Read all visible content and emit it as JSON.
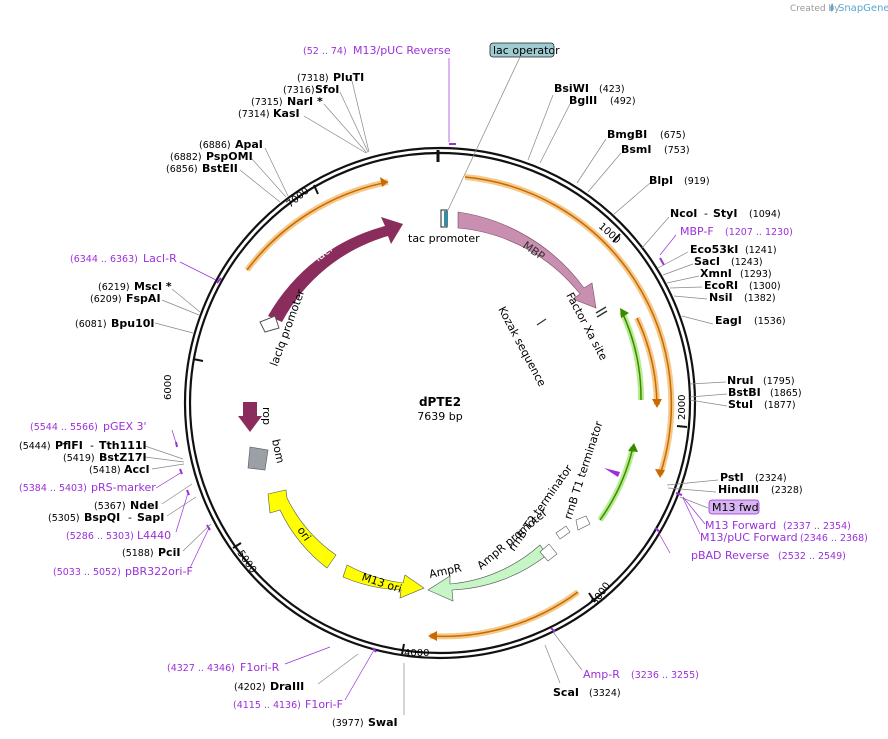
{
  "watermark": "Created by",
  "brand": "SnapGene",
  "plasmid": {
    "name": "dPTE2",
    "size": "7639 bp"
  },
  "ticks": [
    {
      "label": "1000",
      "bp": 1000
    },
    {
      "label": "2000",
      "bp": 2000
    },
    {
      "label": "3000",
      "bp": 3000
    },
    {
      "label": "4000",
      "bp": 4000
    },
    {
      "label": "5000",
      "bp": 5000
    },
    {
      "label": "6000",
      "bp": 6000
    },
    {
      "label": "7000",
      "bp": 7000
    }
  ],
  "features": [
    {
      "name": "MBP",
      "label": "MBP",
      "color": "#c98fb0"
    },
    {
      "name": "lacI",
      "label": "lacI",
      "color": "#8b2d5c"
    },
    {
      "name": "lacIq promoter",
      "label": "lacIq promoter",
      "color": "#ffffff"
    },
    {
      "name": "tac promoter",
      "label": "tac promoter",
      "color": "#ffffff"
    },
    {
      "name": "lac operator",
      "label": "lac operator",
      "color": "#9ecbd2"
    },
    {
      "name": "Factor Xa site",
      "label": "Factor Xa site"
    },
    {
      "name": "Kozak sequence",
      "label": "Kozak sequence"
    },
    {
      "name": "rop",
      "label": "rop",
      "color": "#8b2d5c"
    },
    {
      "name": "bom",
      "label": "bom",
      "color": "#9aa0a6"
    },
    {
      "name": "ori",
      "label": "ori",
      "color": "#ffff00"
    },
    {
      "name": "M13 ori",
      "label": "M13 ori",
      "color": "#ffff00"
    },
    {
      "name": "AmpR",
      "label": "AmpR",
      "color": "#c6f5c6"
    },
    {
      "name": "AmpR promoter",
      "label": "AmpR promoter"
    },
    {
      "name": "rrnB T2 terminator",
      "label": "rrnB T2 terminator"
    },
    {
      "name": "rrnB T1 terminator",
      "label": "rrnB T1 terminator"
    },
    {
      "name": "M13 fwd",
      "label": "M13 fwd",
      "color": "#d7b4f2"
    }
  ],
  "enzymes_right": [
    {
      "name": "BsiWI",
      "pos": "(423)"
    },
    {
      "name": "BglII",
      "pos": "(492)"
    },
    {
      "name": "BmgBI",
      "pos": "(675)"
    },
    {
      "name": "BsmI",
      "pos": "(753)"
    },
    {
      "name": "BlpI",
      "pos": "(919)"
    },
    {
      "name": "NcoI",
      "sep": "-",
      "name2": "StyI",
      "pos": "(1094)"
    },
    {
      "name": "Eco53kI",
      "pos": "(1241)"
    },
    {
      "name": "SacI",
      "pos": "(1243)"
    },
    {
      "name": "XmnI",
      "pos": "(1293)"
    },
    {
      "name": "EcoRI",
      "pos": "(1300)"
    },
    {
      "name": "NsiI",
      "pos": "(1382)"
    },
    {
      "name": "EagI",
      "pos": "(1536)"
    },
    {
      "name": "NruI",
      "pos": "(1795)"
    },
    {
      "name": "BstBI",
      "pos": "(1865)"
    },
    {
      "name": "StuI",
      "pos": "(1877)"
    },
    {
      "name": "PstI",
      "pos": "(2324)"
    },
    {
      "name": "HindIII",
      "pos": "(2328)"
    },
    {
      "name": "ScaI",
      "pos": "(3324)"
    }
  ],
  "enzymes_left": [
    {
      "name": "PluTI",
      "pos": "(7318)"
    },
    {
      "name": "SfoI",
      "pos": "(7316)"
    },
    {
      "name": "NarI *",
      "pos": "(7315)"
    },
    {
      "name": "KasI",
      "pos": "(7314)"
    },
    {
      "name": "ApaI",
      "pos": "(6886)"
    },
    {
      "name": "PspOMI",
      "pos": "(6882)"
    },
    {
      "name": "BstEII",
      "pos": "(6856)"
    },
    {
      "name": "MscI *",
      "pos": "(6219)"
    },
    {
      "name": "FspAI",
      "pos": "(6209)"
    },
    {
      "name": "Bpu10I",
      "pos": "(6081)"
    },
    {
      "name": "PflFI",
      "sep": "-",
      "name2": "Tth111I",
      "pos": "(5444)"
    },
    {
      "name": "BstZ17I",
      "pos": "(5419)"
    },
    {
      "name": "AccI",
      "pos": "(5418)"
    },
    {
      "name": "NdeI",
      "pos": "(5367)"
    },
    {
      "name": "BspQI",
      "sep": "-",
      "name2": "SapI",
      "pos": "(5305)"
    },
    {
      "name": "PciI",
      "pos": "(5188)"
    },
    {
      "name": "DraIII",
      "pos": "(4202)"
    },
    {
      "name": "SwaI",
      "pos": "(3977)"
    }
  ],
  "primers": [
    {
      "name": "M13/pUC Reverse",
      "range": "(52 .. 74)"
    },
    {
      "name": "LacI-R",
      "range": "(6344 .. 6363)"
    },
    {
      "name": "MBP-F",
      "range": "(1207 .. 1230)"
    },
    {
      "name": "pGEX 3'",
      "range": "(5544 .. 5566)"
    },
    {
      "name": "pRS-marker",
      "range": "(5384 .. 5403)"
    },
    {
      "name": "L4440",
      "range": "(5286 .. 5303)"
    },
    {
      "name": "pBR322ori-F",
      "range": "(5033 .. 5052)"
    },
    {
      "name": "M13 Forward",
      "range": "(2337 .. 2354)"
    },
    {
      "name": "M13/pUC Forward",
      "range": "(2346 .. 2368)"
    },
    {
      "name": "pBAD Reverse",
      "range": "(2532 .. 2549)"
    },
    {
      "name": "Amp-R",
      "range": "(3236 .. 3255)"
    },
    {
      "name": "F1ori-R",
      "range": "(4327 .. 4346)"
    },
    {
      "name": "F1ori-F",
      "range": "(4115 .. 4136)"
    }
  ],
  "colors": {
    "backbone": "#111111",
    "orf_halo": "#f5c98a",
    "orf_line": "#c86a00",
    "green_halo": "#b6ec8e",
    "green_line": "#3a8a00",
    "primer": "#9b30d9",
    "leader": "#888888"
  }
}
